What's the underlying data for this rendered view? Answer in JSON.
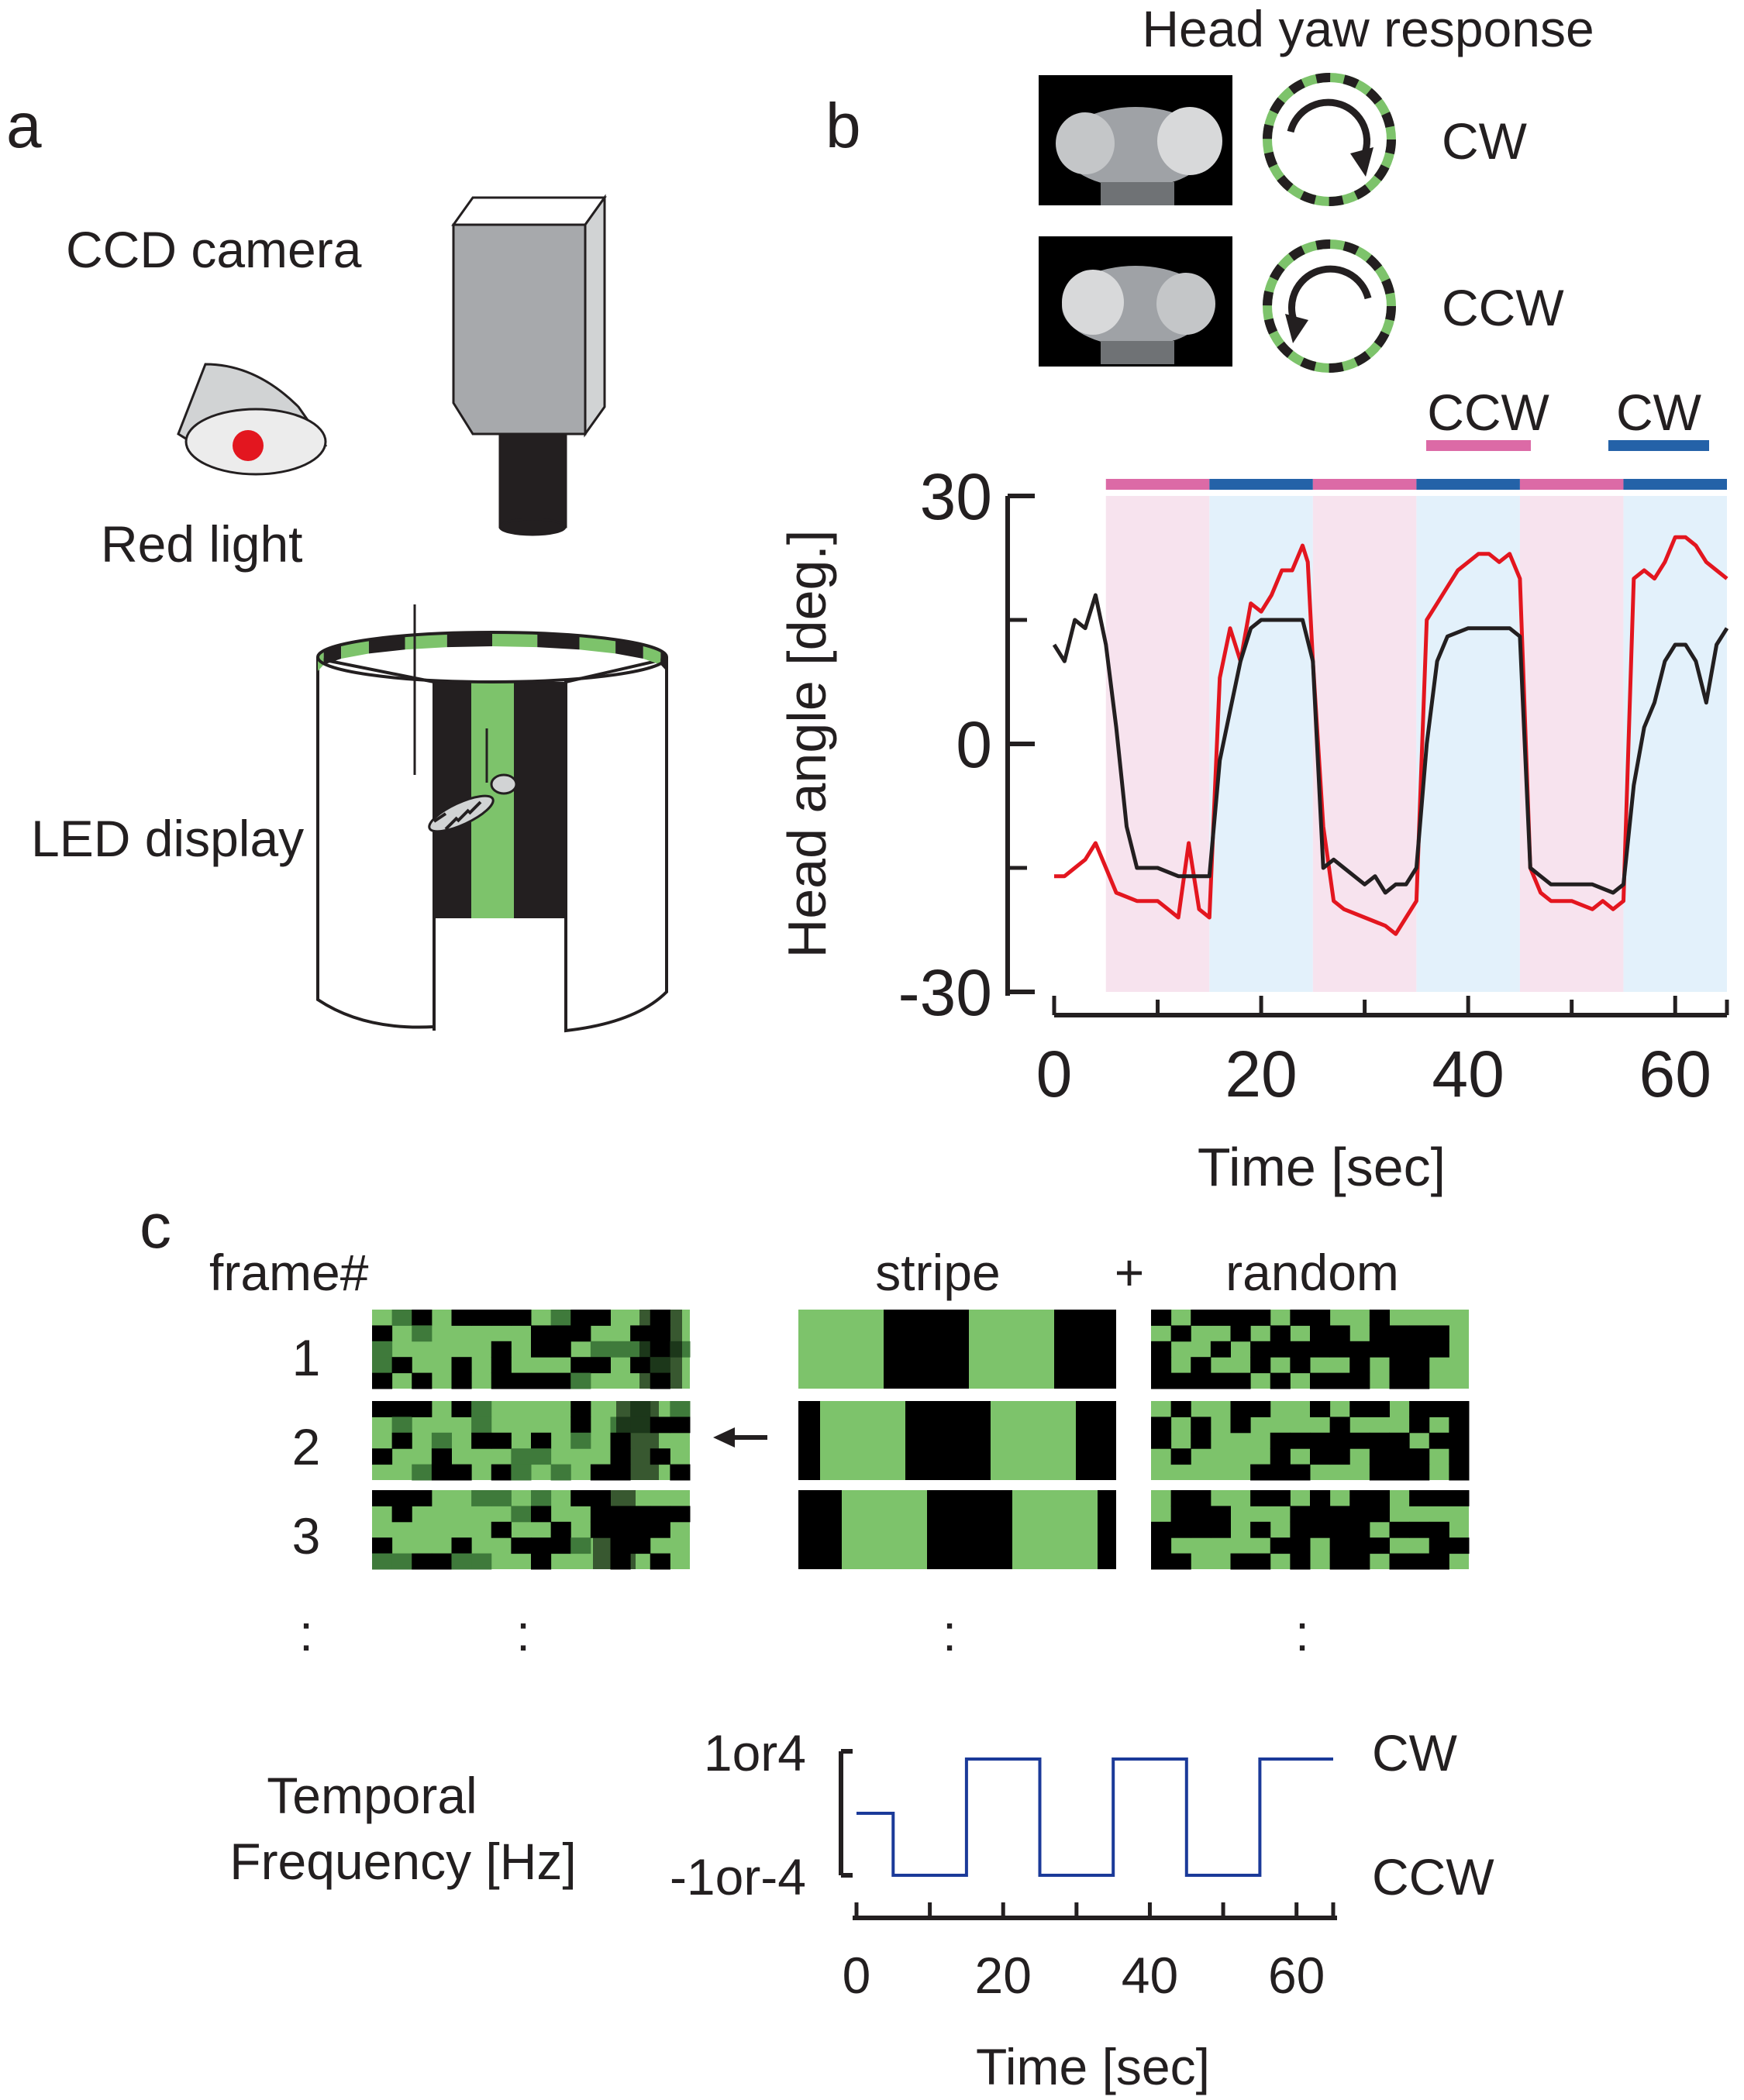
{
  "panel_labels": {
    "a": "a",
    "b": "b",
    "c": "c"
  },
  "panel_a": {
    "camera_label": "CCD camera",
    "light_label": "Red light",
    "display_label": "LED display"
  },
  "panel_b_header": {
    "title": "Head yaw response",
    "cw_label": "CW",
    "ccw_label": "CCW"
  },
  "colors": {
    "ccw_bar": "#dc6aa6",
    "cw_bar": "#2462a8",
    "ccw_shade": "#f7e3ee",
    "cw_shade": "#e3f1fb",
    "trace_red": "#e3161f",
    "trace_black": "#231f20",
    "green": "#7dc36b",
    "dark_green": "#3f7a3b",
    "freq_line": "#1b3a99"
  },
  "chart_data": [
    {
      "type": "line",
      "xlabel": "Time [sec]",
      "ylabel": "Head angle [deg.]",
      "xlim": [
        0,
        65
      ],
      "ylim": [
        -30,
        30
      ],
      "x_ticks": [
        0,
        20,
        40,
        60
      ],
      "y_ticks": [
        30,
        0,
        -30
      ],
      "legend": {
        "ccw": "CCW",
        "cw": "CW"
      },
      "epochs": [
        {
          "dir": "CCW",
          "start": 5,
          "end": 15
        },
        {
          "dir": "CW",
          "start": 15,
          "end": 25
        },
        {
          "dir": "CCW",
          "start": 25,
          "end": 35
        },
        {
          "dir": "CW",
          "start": 35,
          "end": 45
        },
        {
          "dir": "CCW",
          "start": 45,
          "end": 55
        },
        {
          "dir": "CW",
          "start": 55,
          "end": 65
        }
      ],
      "series": [
        {
          "color": "#e3161f",
          "points": [
            [
              0,
              -16
            ],
            [
              1,
              -16
            ],
            [
              2,
              -15
            ],
            [
              3,
              -14
            ],
            [
              4,
              -12
            ],
            [
              5,
              -15
            ],
            [
              6,
              -18
            ],
            [
              8,
              -19
            ],
            [
              10,
              -19
            ],
            [
              11,
              -20
            ],
            [
              12,
              -21
            ],
            [
              13,
              -12
            ],
            [
              14,
              -20
            ],
            [
              15,
              -21
            ],
            [
              16,
              8
            ],
            [
              17,
              14
            ],
            [
              18,
              10
            ],
            [
              19,
              17
            ],
            [
              20,
              16
            ],
            [
              21,
              18
            ],
            [
              22,
              21
            ],
            [
              23,
              21
            ],
            [
              24,
              24
            ],
            [
              24.5,
              22
            ],
            [
              25,
              10
            ],
            [
              26,
              -10
            ],
            [
              27,
              -19
            ],
            [
              28,
              -20
            ],
            [
              30,
              -21
            ],
            [
              32,
              -22
            ],
            [
              33,
              -23
            ],
            [
              34,
              -21
            ],
            [
              35,
              -19
            ],
            [
              36,
              15
            ],
            [
              37,
              17
            ],
            [
              38,
              19
            ],
            [
              39,
              21
            ],
            [
              40,
              22
            ],
            [
              41,
              23
            ],
            [
              42,
              23
            ],
            [
              43,
              22
            ],
            [
              44,
              23
            ],
            [
              45,
              20
            ],
            [
              46,
              -15
            ],
            [
              47,
              -18
            ],
            [
              48,
              -19
            ],
            [
              50,
              -19
            ],
            [
              52,
              -20
            ],
            [
              53,
              -19
            ],
            [
              54,
              -20
            ],
            [
              55,
              -19
            ],
            [
              56,
              20
            ],
            [
              57,
              21
            ],
            [
              58,
              20
            ],
            [
              59,
              22
            ],
            [
              60,
              25
            ],
            [
              61,
              25
            ],
            [
              62,
              24
            ],
            [
              63,
              22
            ],
            [
              64,
              21
            ],
            [
              65,
              20
            ]
          ]
        },
        {
          "color": "#231f20",
          "points": [
            [
              0,
              12
            ],
            [
              1,
              10
            ],
            [
              2,
              15
            ],
            [
              3,
              14
            ],
            [
              4,
              18
            ],
            [
              5,
              12
            ],
            [
              6,
              2
            ],
            [
              7,
              -10
            ],
            [
              8,
              -15
            ],
            [
              10,
              -15
            ],
            [
              12,
              -16
            ],
            [
              14,
              -16
            ],
            [
              15,
              -16
            ],
            [
              16,
              -2
            ],
            [
              17,
              4
            ],
            [
              18,
              10
            ],
            [
              19,
              14
            ],
            [
              20,
              15
            ],
            [
              22,
              15
            ],
            [
              24,
              15
            ],
            [
              25,
              10
            ],
            [
              26,
              -15
            ],
            [
              27,
              -14
            ],
            [
              28,
              -15
            ],
            [
              30,
              -17
            ],
            [
              31,
              -16
            ],
            [
              32,
              -18
            ],
            [
              33,
              -17
            ],
            [
              34,
              -17
            ],
            [
              35,
              -15
            ],
            [
              36,
              0
            ],
            [
              37,
              10
            ],
            [
              38,
              13
            ],
            [
              40,
              14
            ],
            [
              42,
              14
            ],
            [
              44,
              14
            ],
            [
              45,
              13
            ],
            [
              46,
              -15
            ],
            [
              47,
              -16
            ],
            [
              48,
              -17
            ],
            [
              50,
              -17
            ],
            [
              52,
              -17
            ],
            [
              54,
              -18
            ],
            [
              55,
              -17
            ],
            [
              56,
              -5
            ],
            [
              57,
              2
            ],
            [
              58,
              5
            ],
            [
              59,
              10
            ],
            [
              60,
              12
            ],
            [
              61,
              12
            ],
            [
              62,
              10
            ],
            [
              63,
              5
            ],
            [
              64,
              12
            ],
            [
              65,
              14
            ]
          ]
        }
      ]
    },
    {
      "type": "line",
      "xlabel": "Time [sec]",
      "ylabel": "Temporal Frequency [Hz]",
      "xlim": [
        0,
        65
      ],
      "x_ticks": [
        0,
        20,
        40,
        60
      ],
      "y_ticks": [
        "1or4",
        "-1or-4"
      ],
      "right_labels": {
        "top": "CW",
        "bottom": "CCW"
      },
      "series": [
        {
          "color": "#1b3a99",
          "points": [
            [
              0,
              0
            ],
            [
              5,
              0
            ],
            [
              5,
              -1
            ],
            [
              15,
              -1
            ],
            [
              15,
              1
            ],
            [
              25,
              1
            ],
            [
              25,
              -1
            ],
            [
              35,
              -1
            ],
            [
              35,
              1
            ],
            [
              45,
              1
            ],
            [
              45,
              -1
            ],
            [
              55,
              -1
            ],
            [
              55,
              1
            ],
            [
              65,
              1
            ]
          ]
        }
      ]
    }
  ],
  "panel_c": {
    "frame_header": "frame#",
    "frame_numbers": [
      "1",
      "2",
      "3"
    ],
    "stripe_label": "stripe",
    "plus_label": "+",
    "random_label": "random",
    "dots": ":"
  }
}
